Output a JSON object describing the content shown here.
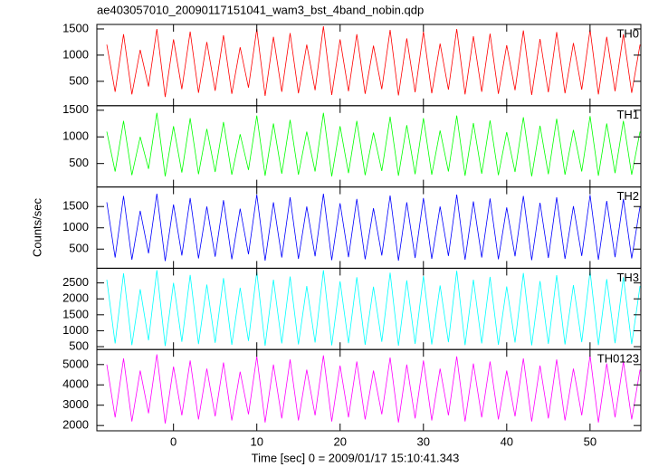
{
  "chart_data": [
    {
      "type": "line",
      "title": "ae403057010_20090117151041_wam3_bst_4band_nobin.qdp",
      "label": "TH0",
      "color": "#ff0000",
      "xlim": [
        -9.2,
        56.1
      ],
      "ylim": [
        34,
        1586
      ],
      "yticks": [
        500,
        1000,
        1500
      ],
      "x": [
        -8,
        -7,
        -6,
        -5,
        -4,
        -3,
        -2,
        -1,
        0,
        1,
        2,
        3,
        4,
        5,
        6,
        7,
        8,
        9,
        10,
        11,
        12,
        13,
        14,
        15,
        16,
        17,
        18,
        19,
        20,
        21,
        22,
        23,
        24,
        25,
        26,
        27,
        28,
        29,
        30,
        31,
        32,
        33,
        34,
        35,
        36,
        37,
        38,
        39,
        40,
        41,
        42,
        43,
        44,
        45,
        46,
        47,
        48,
        49,
        50,
        51,
        52,
        53,
        54,
        55,
        56
      ],
      "values": [
        1200,
        300,
        1400,
        250,
        1100,
        400,
        1500,
        200,
        1300,
        350,
        1450,
        280,
        1250,
        320,
        1380,
        260,
        1150,
        380,
        1500,
        220,
        1350,
        300,
        1420,
        270,
        1200,
        330,
        1550,
        240,
        1300,
        310,
        1400,
        260,
        1180,
        350,
        1480,
        230,
        1320,
        290,
        1450,
        270,
        1220,
        340,
        1500,
        250,
        1360,
        300,
        1410,
        260,
        1190,
        330,
        1470,
        240,
        1310,
        290,
        1440,
        270,
        1230,
        340,
        1490,
        250,
        1350,
        310,
        1400,
        280,
        1200
      ]
    },
    {
      "type": "line",
      "label": "TH1",
      "color": "#00ff00",
      "xlim": [
        -9.2,
        56.1
      ],
      "ylim": [
        60,
        1585
      ],
      "yticks": [
        500,
        1000,
        1500
      ],
      "x": [
        -8,
        -7,
        -6,
        -5,
        -4,
        -3,
        -2,
        -1,
        0,
        1,
        2,
        3,
        4,
        5,
        6,
        7,
        8,
        9,
        10,
        11,
        12,
        13,
        14,
        15,
        16,
        17,
        18,
        19,
        20,
        21,
        22,
        23,
        24,
        25,
        26,
        27,
        28,
        29,
        30,
        31,
        32,
        33,
        34,
        35,
        36,
        37,
        38,
        39,
        40,
        41,
        42,
        43,
        44,
        45,
        46,
        47,
        48,
        49,
        50,
        51,
        52,
        53,
        54,
        55,
        56
      ],
      "values": [
        1100,
        350,
        1300,
        280,
        1000,
        400,
        1450,
        260,
        1200,
        330,
        1350,
        300,
        1150,
        340,
        1280,
        290,
        1050,
        380,
        1400,
        270,
        1250,
        310,
        1320,
        290,
        1100,
        350,
        1450,
        260,
        1200,
        320,
        1300,
        280,
        1080,
        360,
        1380,
        270,
        1220,
        300,
        1350,
        290,
        1120,
        350,
        1400,
        270,
        1260,
        310,
        1310,
        280,
        1090,
        340,
        1370,
        260,
        1210,
        300,
        1340,
        290,
        1130,
        350,
        1390,
        270,
        1250,
        320,
        1300,
        290,
        1100
      ]
    },
    {
      "type": "line",
      "label": "TH2",
      "ylabel": "Counts/sec",
      "color": "#0000ff",
      "xlim": [
        -9.2,
        56.1
      ],
      "ylim": [
        50,
        1960
      ],
      "yticks": [
        500,
        1000,
        1500
      ],
      "x": [
        -8,
        -7,
        -6,
        -5,
        -4,
        -3,
        -2,
        -1,
        0,
        1,
        2,
        3,
        4,
        5,
        6,
        7,
        8,
        9,
        10,
        11,
        12,
        13,
        14,
        15,
        16,
        17,
        18,
        19,
        20,
        21,
        22,
        23,
        24,
        25,
        26,
        27,
        28,
        29,
        30,
        31,
        32,
        33,
        34,
        35,
        36,
        37,
        38,
        39,
        40,
        41,
        42,
        43,
        44,
        45,
        46,
        47,
        48,
        49,
        50,
        51,
        52,
        53,
        54,
        55,
        56
      ],
      "values": [
        1600,
        300,
        1750,
        250,
        1400,
        400,
        1800,
        220,
        1550,
        350,
        1700,
        280,
        1500,
        320,
        1650,
        260,
        1450,
        380,
        1780,
        230,
        1600,
        300,
        1720,
        270,
        1500,
        330,
        1800,
        240,
        1580,
        310,
        1680,
        260,
        1460,
        350,
        1760,
        230,
        1600,
        290,
        1700,
        270,
        1500,
        340,
        1780,
        250,
        1620,
        300,
        1690,
        260,
        1480,
        330,
        1750,
        240,
        1590,
        290,
        1720,
        270,
        1510,
        340,
        1770,
        250,
        1630,
        310,
        1680,
        280,
        1500
      ]
    },
    {
      "type": "line",
      "label": "TH3",
      "color": "#00ffff",
      "xlim": [
        -9.2,
        56.1
      ],
      "ylim": [
        410,
        2960
      ],
      "yticks": [
        500,
        1000,
        1500,
        2000,
        2500
      ],
      "x": [
        -8,
        -7,
        -6,
        -5,
        -4,
        -3,
        -2,
        -1,
        0,
        1,
        2,
        3,
        4,
        5,
        6,
        7,
        8,
        9,
        10,
        11,
        12,
        13,
        14,
        15,
        16,
        17,
        18,
        19,
        20,
        21,
        22,
        23,
        24,
        25,
        26,
        27,
        28,
        29,
        30,
        31,
        32,
        33,
        34,
        35,
        36,
        37,
        38,
        39,
        40,
        41,
        42,
        43,
        44,
        45,
        46,
        47,
        48,
        49,
        50,
        51,
        52,
        53,
        54,
        55,
        56
      ],
      "values": [
        2600,
        600,
        2800,
        550,
        2300,
        700,
        2900,
        520,
        2500,
        650,
        2750,
        580,
        2450,
        620,
        2650,
        560,
        2350,
        680,
        2850,
        530,
        2600,
        600,
        2700,
        570,
        2400,
        630,
        2900,
        540,
        2550,
        610,
        2680,
        560,
        2380,
        650,
        2820,
        530,
        2580,
        590,
        2720,
        570,
        2420,
        640,
        2880,
        550,
        2600,
        600,
        2690,
        560,
        2390,
        630,
        2810,
        540,
        2560,
        590,
        2740,
        570,
        2430,
        640,
        2870,
        550,
        2620,
        610,
        2680,
        580,
        2400
      ]
    },
    {
      "type": "line",
      "label": "TH0123",
      "xlabel": "Time [sec] 0 = 2009/01/17 15:10:41.343",
      "color": "#ff00ff",
      "xlim": [
        -9.2,
        56.1
      ],
      "xticks": [
        0,
        10,
        20,
        30,
        40,
        50
      ],
      "ylim": [
        1740,
        5740
      ],
      "yticks": [
        2000,
        3000,
        4000,
        5000
      ],
      "x": [
        -8,
        -7,
        -6,
        -5,
        -4,
        -3,
        -2,
        -1,
        0,
        1,
        2,
        3,
        4,
        5,
        6,
        7,
        8,
        9,
        10,
        11,
        12,
        13,
        14,
        15,
        16,
        17,
        18,
        19,
        20,
        21,
        22,
        23,
        24,
        25,
        26,
        27,
        28,
        29,
        30,
        31,
        32,
        33,
        34,
        35,
        36,
        37,
        38,
        39,
        40,
        41,
        42,
        43,
        44,
        45,
        46,
        47,
        48,
        49,
        50,
        51,
        52,
        53,
        54,
        55,
        56
      ],
      "values": [
        5000,
        2400,
        5300,
        2200,
        4700,
        2600,
        5500,
        2100,
        4900,
        2500,
        5200,
        2300,
        4800,
        2450,
        5100,
        2250,
        4650,
        2550,
        5400,
        2150,
        5000,
        2350,
        5250,
        2250,
        4750,
        2500,
        5450,
        2200,
        4950,
        2400,
        5150,
        2300,
        4700,
        2550,
        5350,
        2150,
        5000,
        2350,
        5200,
        2250,
        4800,
        2500,
        5400,
        2200,
        5050,
        2400,
        5150,
        2300,
        4700,
        2450,
        5300,
        2200,
        4950,
        2350,
        5250,
        2250,
        4800,
        2500,
        5450,
        2150,
        5050,
        2400,
        5150,
        2300,
        4750
      ]
    }
  ]
}
